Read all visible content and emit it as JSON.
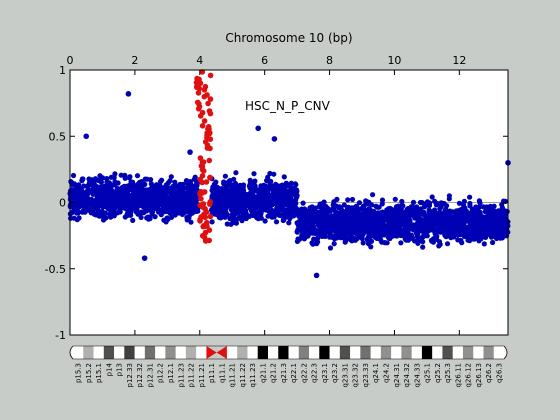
{
  "chart_data": {
    "type": "scatter",
    "title": "",
    "xlabel": "Chromosome 10 (bp)",
    "ylabel": "",
    "xlim": [
      0,
      13.5
    ],
    "ylim": [
      -1,
      1
    ],
    "xticks": [
      0,
      2,
      4,
      6,
      8,
      10,
      12
    ],
    "yticks": [
      -1,
      -0.5,
      0,
      0.5,
      1
    ],
    "xtick_labels": [
      "0",
      "2",
      "4",
      "6",
      "8",
      "10",
      "12"
    ],
    "ytick_labels": [
      "-1",
      "-0.5",
      "0",
      "0.5",
      "1"
    ],
    "annotation": "HSC_N_P_CNV",
    "grid": false,
    "zero_line": true,
    "colors": {
      "background": "#c8ccc8",
      "plot_bg": "#ffffff",
      "series_normal": "#0000b4",
      "series_highlight": "#e01010",
      "zero_line": "#a0a0a0",
      "centromere": "#e01010"
    },
    "segments": [
      {
        "x_start": 0.0,
        "x_end": 3.95,
        "mean": 0.03,
        "spread": 0.22
      },
      {
        "x_start": 4.35,
        "x_end": 7.0,
        "mean": 0.02,
        "spread": 0.22
      },
      {
        "x_start": 7.0,
        "x_end": 13.5,
        "mean": -0.15,
        "spread": 0.22
      }
    ],
    "outliers": [
      {
        "x": 1.8,
        "y": 0.82
      },
      {
        "x": 0.5,
        "y": 0.5
      },
      {
        "x": 5.8,
        "y": 0.56
      },
      {
        "x": 6.3,
        "y": 0.48
      },
      {
        "x": 13.5,
        "y": 0.3
      },
      {
        "x": 7.6,
        "y": -0.55
      },
      {
        "x": 2.3,
        "y": -0.42
      },
      {
        "x": 3.7,
        "y": 0.38
      }
    ],
    "highlight_series": [
      {
        "x_start": 4.0,
        "x_end": 4.35,
        "y_range": [
          -0.3,
          1.0
        ]
      },
      {
        "x_start": 3.9,
        "x_end": 4.0,
        "y_range": [
          0.7,
          0.95
        ]
      }
    ],
    "ideogram": {
      "bands": [
        {
          "label": "p15.3",
          "color": "#ffffff"
        },
        {
          "label": "p15.2",
          "color": "#b0b0b0"
        },
        {
          "label": "p15.1",
          "color": "#ffffff"
        },
        {
          "label": "p14",
          "color": "#505050"
        },
        {
          "label": "p13",
          "color": "#ffffff"
        },
        {
          "label": "p12.33",
          "color": "#404040"
        },
        {
          "label": "p12.32",
          "color": "#ffffff"
        },
        {
          "label": "p12.31",
          "color": "#707070"
        },
        {
          "label": "p12.2",
          "color": "#ffffff"
        },
        {
          "label": "p12.1",
          "color": "#909090"
        },
        {
          "label": "p11.23",
          "color": "#ffffff"
        },
        {
          "label": "p11.22",
          "color": "#b0b0b0"
        },
        {
          "label": "p11.21",
          "color": "#ffffff"
        },
        {
          "label": "p11.1",
          "color": "#e01010"
        },
        {
          "label": "q11.1",
          "color": "#e01010"
        },
        {
          "label": "q11.21",
          "color": "#ffffff"
        },
        {
          "label": "q11.22",
          "color": "#b0b0b0"
        },
        {
          "label": "q11.23",
          "color": "#ffffff"
        },
        {
          "label": "q21.1",
          "color": "#000000"
        },
        {
          "label": "q21.2",
          "color": "#ffffff"
        },
        {
          "label": "q21.3",
          "color": "#000000"
        },
        {
          "label": "q22.1",
          "color": "#ffffff"
        },
        {
          "label": "q22.2",
          "color": "#808080"
        },
        {
          "label": "q22.3",
          "color": "#ffffff"
        },
        {
          "label": "q23.1",
          "color": "#000000"
        },
        {
          "label": "q23.2",
          "color": "#ffffff"
        },
        {
          "label": "q23.31",
          "color": "#505050"
        },
        {
          "label": "q23.32",
          "color": "#ffffff"
        },
        {
          "label": "q23.33",
          "color": "#707070"
        },
        {
          "label": "q24.1",
          "color": "#ffffff"
        },
        {
          "label": "q24.2",
          "color": "#909090"
        },
        {
          "label": "q24.31",
          "color": "#ffffff"
        },
        {
          "label": "q24.32",
          "color": "#909090"
        },
        {
          "label": "q24.33",
          "color": "#ffffff"
        },
        {
          "label": "q25.1",
          "color": "#000000"
        },
        {
          "label": "q25.2",
          "color": "#ffffff"
        },
        {
          "label": "q25.3",
          "color": "#505050"
        },
        {
          "label": "q26.11",
          "color": "#ffffff"
        },
        {
          "label": "q26.12",
          "color": "#909090"
        },
        {
          "label": "q26.13",
          "color": "#ffffff"
        },
        {
          "label": "q26.2",
          "color": "#909090"
        },
        {
          "label": "q26.3",
          "color": "#ffffff"
        }
      ]
    }
  }
}
